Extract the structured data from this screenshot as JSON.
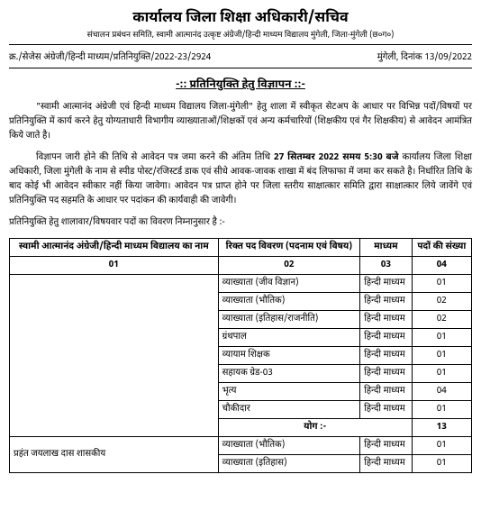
{
  "header": {
    "office_title": "कार्यालय जिला शिक्षा अधिकारी/सचिव",
    "subtitle": "संचालन प्रबंधन समिति, स्वामी आत्मानंद उत्कृष्ट अंग्रेजी/हिन्दी माध्यम विद्यालय मुंगेली, जिला-मुंगेली (छ०ग०)"
  },
  "ref": {
    "left": "क्र./सेजेस अंग्रेजी/हिन्दी माध्यम/प्रतिनियुक्ति/2022-23/2924",
    "right": "मुंगेली, दिनांक 13/09/2022"
  },
  "notice_title": "-:: प्रतिनियुक्ति हेतु विज्ञापन ::-",
  "paragraphs": {
    "p1": "\"स्वामी आत्मानंद अंग्रेजी एवं हिन्दी माध्यम विद्यालय जिला-मुंगेली\" हेतु शाला में स्वीकृत सेटअप के आधार पर विभिन्न पदों/विषयों पर प्रतिनियुक्ति में कार्य करने हेतु योग्यताधारी विभागीय व्याख्याताओं/शिक्षकों एवं अन्य कर्मचारियों (शिक्षकीय एवं गैर शिक्षकीय) से आवेदन आमंत्रित किये जाते है।",
    "p2_part1": "विज्ञापन जारी होने की तिथि से आवेदन पत्र जमा करने की अंतिम तिथि ",
    "p2_bold": "27 सितम्बर 2022 समय 5:30 बजे",
    "p2_part2": " कार्यालय जिला शिक्षा अधिकारी, जिला मुंगेली के नाम से स्पीड पोस्ट/रजिस्टर्ड डाक एवं सीधे आवक-जावक शाखा में बंद लिफाफा में जमा कर सकते है। निर्धारित तिथि के बाद कोई भी आवेदन स्वीकार नहीं किया जावेगा। आवेदन पत्र प्राप्त होने पर जिला स्तरीय साक्षात्कार समिति द्वारा साक्षात्कार लिये जावेंगे एवं प्रतिनियुक्ति पद सहमति के आधार पर पदांकन की कार्यवाही की जावेगी।",
    "p3": "प्रतिनियुक्ति हेतु शालावार/विषयवार पदों का विवरण निम्नानुसार है :-"
  },
  "table": {
    "headers": {
      "h1": "स्वामी आत्मानंद अंग्रेजी/हिन्दी माध्यम विद्यालय का नाम",
      "h2": "रिक्त पद विवरण (पदनाम एवं विषय)",
      "h3": "माध्यम",
      "h4": "पदों की संख्या",
      "n1": "01",
      "n2": "02",
      "n3": "03",
      "n4": "04"
    },
    "school1": "",
    "rows1": [
      {
        "post": "व्याख्याता (जीव विज्ञान)",
        "medium": "हिन्दी माध्यम",
        "count": "01"
      },
      {
        "post": "व्याख्याता (भौतिक)",
        "medium": "हिन्दी माध्यम",
        "count": "02"
      },
      {
        "post": "व्याख्याता (इतिहास/राजनीति)",
        "medium": "हिन्दी माध्यम",
        "count": "02"
      },
      {
        "post": "ग्रंथपाल",
        "medium": "हिन्दी माध्यम",
        "count": "01"
      },
      {
        "post": "व्यायाम शिक्षक",
        "medium": "हिन्दी माध्यम",
        "count": "01"
      },
      {
        "post": "सहायक ग्रेड-03",
        "medium": "हिन्दी माध्यम",
        "count": "01"
      },
      {
        "post": "भृत्य",
        "medium": "हिन्दी माध्यम",
        "count": "04"
      },
      {
        "post": "चौकीदार",
        "medium": "हिन्दी माध्यम",
        "count": "01"
      }
    ],
    "total_label": "योग :-",
    "total_count": "13",
    "school2": "प्रहंत जयलाख दास शासकीय",
    "rows2": [
      {
        "post": "व्याख्याता (भौतिक)",
        "medium": "हिन्दी माध्यम",
        "count": "01"
      },
      {
        "post": "व्याख्याता (इतिहास)",
        "medium": "हिन्दी माध्यम",
        "count": "01"
      }
    ]
  }
}
